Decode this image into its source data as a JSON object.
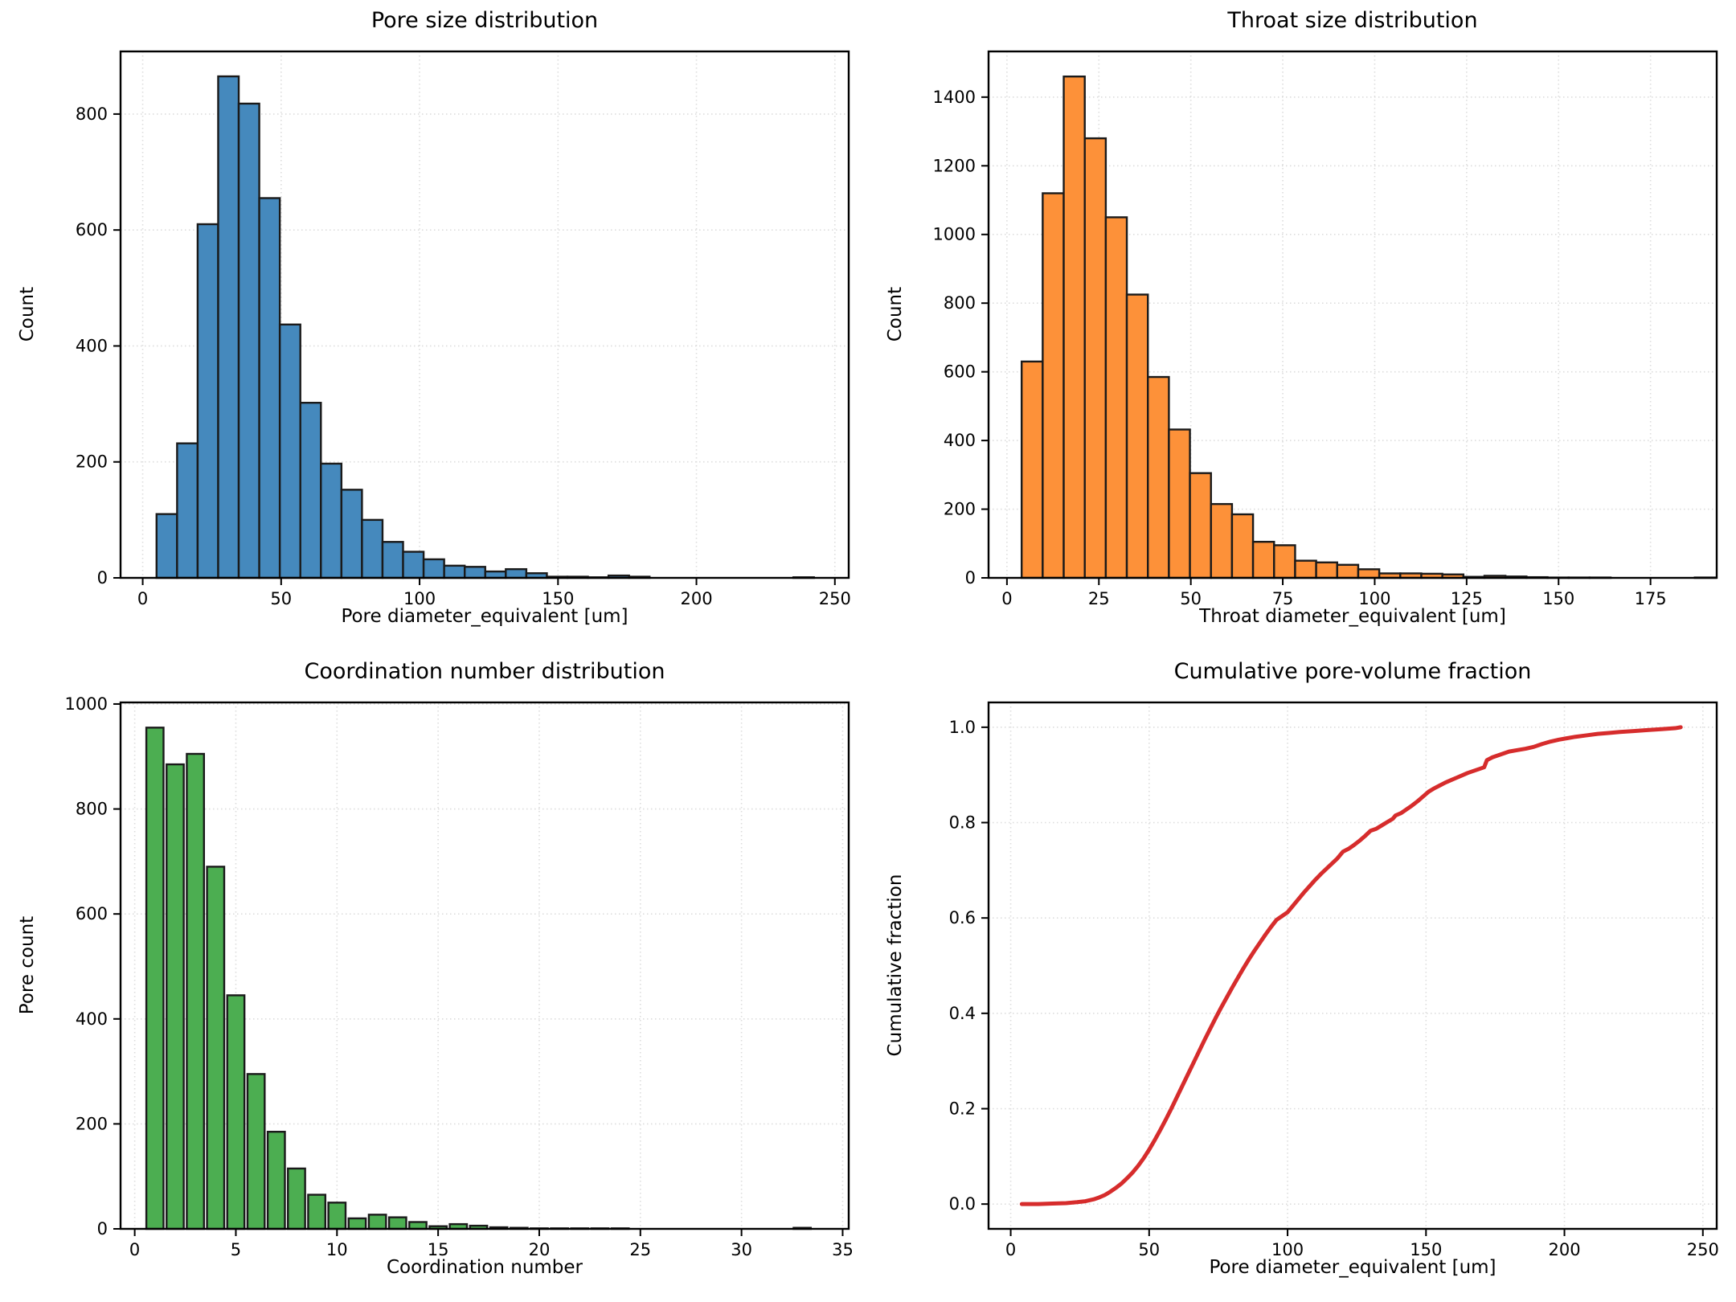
{
  "chart_data": [
    {
      "type": "histogram",
      "title": "Pore size distribution",
      "xlabel": "Pore diameter_equivalent [um]",
      "ylabel": "Count",
      "bar_color": "#4589bd",
      "edge_color": "#1a1a1a",
      "bin_start": 5.0,
      "bin_width": 7.42,
      "values": [
        110,
        232,
        610,
        865,
        818,
        655,
        437,
        302,
        197,
        152,
        100,
        62,
        45,
        32,
        21,
        19,
        11,
        15,
        8,
        2,
        2,
        1,
        4,
        2,
        0,
        0,
        0,
        0,
        0,
        0,
        0,
        1
      ],
      "xlim": [
        -8,
        255
      ],
      "ylim": [
        0,
        908
      ],
      "xticks": [
        0,
        50,
        100,
        150,
        200,
        250
      ],
      "xtick_labels": [
        "0",
        "50",
        "100",
        "150",
        "200",
        "250"
      ],
      "yticks": [
        0,
        200,
        400,
        600,
        800
      ],
      "ytick_labels": [
        "0",
        "200",
        "400",
        "600",
        "800"
      ],
      "grid": true
    },
    {
      "type": "histogram",
      "title": "Throat size distribution",
      "xlabel": "Throat diameter_equivalent [um]",
      "ylabel": "Count",
      "bar_color": "#fd9139",
      "edge_color": "#1a1a1a",
      "bin_start": 4.0,
      "bin_width": 5.72,
      "values": [
        630,
        1120,
        1460,
        1280,
        1050,
        825,
        585,
        432,
        305,
        215,
        185,
        105,
        95,
        50,
        45,
        38,
        25,
        13,
        13,
        12,
        10,
        3,
        6,
        4,
        2,
        1,
        1,
        1,
        0,
        0,
        0,
        0,
        1
      ],
      "xlim": [
        -5,
        193
      ],
      "ylim": [
        0,
        1533
      ],
      "xticks": [
        0,
        25,
        50,
        75,
        100,
        125,
        150,
        175
      ],
      "xtick_labels": [
        "0",
        "25",
        "50",
        "75",
        "100",
        "125",
        "150",
        "175"
      ],
      "yticks": [
        0,
        200,
        400,
        600,
        800,
        1000,
        1200,
        1400
      ],
      "ytick_labels": [
        "0",
        "200",
        "400",
        "600",
        "800",
        "1000",
        "1200",
        "1400"
      ],
      "grid": true
    },
    {
      "type": "bar",
      "title": "Coordination number distribution",
      "xlabel": "Coordination number",
      "ylabel": "Pore count",
      "bar_color": "#4cae51",
      "edge_color": "#1a1a1a",
      "bar_width": 0.85,
      "x": [
        1,
        2,
        3,
        4,
        5,
        6,
        7,
        8,
        9,
        10,
        11,
        12,
        13,
        14,
        15,
        16,
        17,
        18,
        19,
        20,
        21,
        22,
        23,
        24,
        33
      ],
      "values": [
        955,
        885,
        905,
        690,
        445,
        295,
        185,
        115,
        65,
        50,
        20,
        27,
        22,
        13,
        5,
        9,
        6,
        3,
        2,
        1,
        1,
        1,
        1,
        1,
        2
      ],
      "xlim": [
        -0.7,
        35.3
      ],
      "ylim": [
        0,
        1003
      ],
      "xticks": [
        0,
        5,
        10,
        15,
        20,
        25,
        30,
        35
      ],
      "xtick_labels": [
        "0",
        "5",
        "10",
        "15",
        "20",
        "25",
        "30",
        "35"
      ],
      "yticks": [
        0,
        200,
        400,
        600,
        800,
        1000
      ],
      "ytick_labels": [
        "0",
        "200",
        "400",
        "600",
        "800",
        "1000"
      ],
      "grid": true
    },
    {
      "type": "line",
      "title": "Cumulative pore-volume fraction",
      "xlabel": "Pore diameter_equivalent [um]",
      "ylabel": "Cumulative fraction",
      "line_color": "#d62c2c",
      "line_width": 5,
      "points": [
        [
          4,
          0
        ],
        [
          10,
          0
        ],
        [
          15,
          0.001
        ],
        [
          20,
          0.002
        ],
        [
          24,
          0.004
        ],
        [
          27,
          0.006
        ],
        [
          30,
          0.01
        ],
        [
          32,
          0.014
        ],
        [
          34,
          0.019
        ],
        [
          36,
          0.026
        ],
        [
          38,
          0.034
        ],
        [
          40,
          0.043
        ],
        [
          42,
          0.054
        ],
        [
          44,
          0.066
        ],
        [
          46,
          0.08
        ],
        [
          48,
          0.096
        ],
        [
          50,
          0.114
        ],
        [
          52,
          0.134
        ],
        [
          54,
          0.155
        ],
        [
          56,
          0.177
        ],
        [
          58,
          0.2
        ],
        [
          60,
          0.224
        ],
        [
          62,
          0.248
        ],
        [
          64,
          0.272
        ],
        [
          66,
          0.296
        ],
        [
          68,
          0.32
        ],
        [
          70,
          0.344
        ],
        [
          72,
          0.367
        ],
        [
          74,
          0.39
        ],
        [
          76,
          0.412
        ],
        [
          78,
          0.433
        ],
        [
          80,
          0.454
        ],
        [
          82,
          0.474
        ],
        [
          84,
          0.494
        ],
        [
          86,
          0.513
        ],
        [
          88,
          0.531
        ],
        [
          90,
          0.548
        ],
        [
          92,
          0.565
        ],
        [
          94,
          0.581
        ],
        [
          96,
          0.596
        ],
        [
          98,
          0.604
        ],
        [
          100,
          0.612
        ],
        [
          102,
          0.626
        ],
        [
          104,
          0.64
        ],
        [
          106,
          0.654
        ],
        [
          108,
          0.667
        ],
        [
          110,
          0.68
        ],
        [
          112,
          0.692
        ],
        [
          114,
          0.703
        ],
        [
          116,
          0.714
        ],
        [
          118,
          0.725
        ],
        [
          120,
          0.739
        ],
        [
          122,
          0.745
        ],
        [
          124,
          0.753
        ],
        [
          126,
          0.762
        ],
        [
          128,
          0.772
        ],
        [
          130,
          0.783
        ],
        [
          132,
          0.787
        ],
        [
          134,
          0.794
        ],
        [
          136,
          0.801
        ],
        [
          138,
          0.808
        ],
        [
          139,
          0.815
        ],
        [
          141,
          0.82
        ],
        [
          143,
          0.828
        ],
        [
          145,
          0.836
        ],
        [
          147,
          0.845
        ],
        [
          149,
          0.855
        ],
        [
          151,
          0.865
        ],
        [
          153,
          0.872
        ],
        [
          155,
          0.878
        ],
        [
          157,
          0.884
        ],
        [
          159,
          0.889
        ],
        [
          161,
          0.894
        ],
        [
          163,
          0.899
        ],
        [
          165,
          0.904
        ],
        [
          167,
          0.908
        ],
        [
          169,
          0.912
        ],
        [
          171,
          0.916
        ],
        [
          172,
          0.931
        ],
        [
          174,
          0.937
        ],
        [
          176,
          0.941
        ],
        [
          178,
          0.945
        ],
        [
          180,
          0.949
        ],
        [
          183,
          0.952
        ],
        [
          186,
          0.955
        ],
        [
          189,
          0.959
        ],
        [
          192,
          0.965
        ],
        [
          195,
          0.97
        ],
        [
          198,
          0.974
        ],
        [
          201,
          0.977
        ],
        [
          204,
          0.98
        ],
        [
          208,
          0.983
        ],
        [
          212,
          0.986
        ],
        [
          216,
          0.988
        ],
        [
          220,
          0.99
        ],
        [
          225,
          0.992
        ],
        [
          230,
          0.994
        ],
        [
          235,
          0.996
        ],
        [
          240,
          0.998
        ],
        [
          242,
          1.0
        ]
      ],
      "xlim": [
        -8,
        255
      ],
      "ylim": [
        -0.052,
        1.052
      ],
      "xticks": [
        0,
        50,
        100,
        150,
        200,
        250
      ],
      "xtick_labels": [
        "0",
        "50",
        "100",
        "150",
        "200",
        "250"
      ],
      "yticks": [
        0,
        0.2,
        0.4,
        0.6,
        0.8,
        1.0
      ],
      "ytick_labels": [
        "0.0",
        "0.2",
        "0.4",
        "0.6",
        "0.8",
        "1.0"
      ],
      "grid": true
    }
  ]
}
